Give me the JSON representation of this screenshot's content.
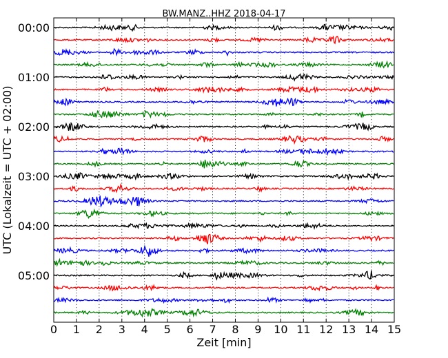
{
  "chart_data": {
    "type": "line",
    "title": "BW.MANZ..HHZ 2018-04-17",
    "xlabel": "Zeit  [min]",
    "ylabel": "UTC (Lokalzeit = UTC + 02:00)",
    "xlim": [
      0,
      15
    ],
    "x_ticks": [
      0,
      1,
      2,
      3,
      4,
      5,
      6,
      7,
      8,
      9,
      10,
      11,
      12,
      13,
      14,
      15
    ],
    "y_tick_labels": [
      "00:00",
      "01:00",
      "02:00",
      "03:00",
      "04:00",
      "05:00"
    ],
    "grid": "vertical dotted",
    "trace_colors": [
      "#000000",
      "#ff0000",
      "#0000ff",
      "#008000"
    ],
    "traces": [
      {
        "start": "00:00",
        "color": "#000000"
      },
      {
        "start": "00:15",
        "color": "#ff0000"
      },
      {
        "start": "00:30",
        "color": "#0000ff"
      },
      {
        "start": "00:45",
        "color": "#008000"
      },
      {
        "start": "01:00",
        "color": "#000000"
      },
      {
        "start": "01:15",
        "color": "#ff0000"
      },
      {
        "start": "01:30",
        "color": "#0000ff"
      },
      {
        "start": "01:45",
        "color": "#008000"
      },
      {
        "start": "02:00",
        "color": "#000000"
      },
      {
        "start": "02:15",
        "color": "#ff0000"
      },
      {
        "start": "02:30",
        "color": "#0000ff"
      },
      {
        "start": "02:45",
        "color": "#008000"
      },
      {
        "start": "03:00",
        "color": "#000000"
      },
      {
        "start": "03:15",
        "color": "#ff0000"
      },
      {
        "start": "03:30",
        "color": "#0000ff"
      },
      {
        "start": "03:45",
        "color": "#008000"
      },
      {
        "start": "04:00",
        "color": "#000000"
      },
      {
        "start": "04:15",
        "color": "#ff0000"
      },
      {
        "start": "04:30",
        "color": "#0000ff"
      },
      {
        "start": "04:45",
        "color": "#008000"
      },
      {
        "start": "05:00",
        "color": "#000000"
      },
      {
        "start": "05:15",
        "color": "#ff0000"
      },
      {
        "start": "05:30",
        "color": "#0000ff"
      },
      {
        "start": "05:45",
        "color": "#008000"
      }
    ]
  }
}
